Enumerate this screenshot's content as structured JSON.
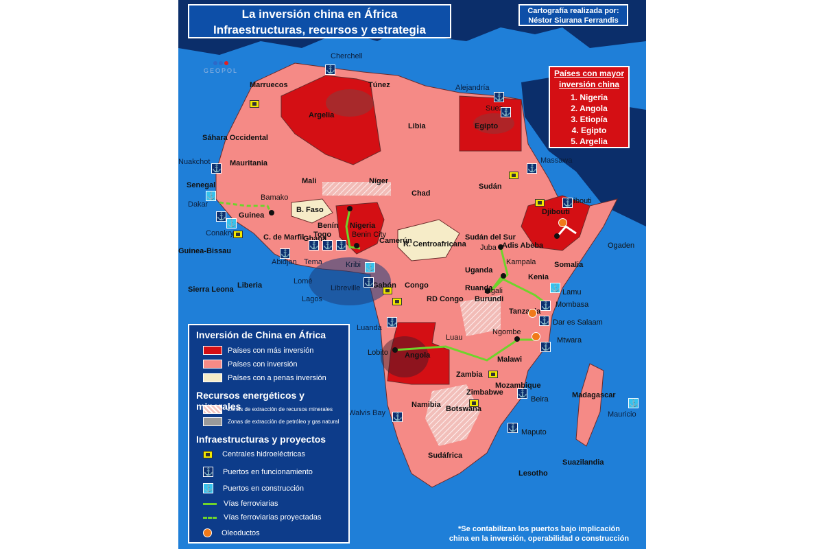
{
  "title": {
    "line1": "La inversión china en África",
    "line2": "Infraestructuras, recursos y estrategia"
  },
  "credit": {
    "line1": "Cartografía realizada por:",
    "line2": "Néstor Siurana Ferrandis"
  },
  "logo": "GEOPOL",
  "top_countries": {
    "heading1": "Países con mayor",
    "heading2": "inversión china",
    "items": [
      "1. Nigeria",
      "2. Angola",
      "3. Etiopía",
      "4. Egipto",
      "5. Argelia"
    ]
  },
  "countries": {
    "marruecos": "Marruecos",
    "argelia": "Argelia",
    "tunez": "Túnez",
    "libia": "Libia",
    "egipto": "Egipto",
    "sahara": "Sáhara Occidental",
    "mauritania": "Mauritania",
    "mali": "Mali",
    "niger": "Níger",
    "chad": "Chad",
    "sudan": "Sudán",
    "senegal": "Senegal",
    "guinea": "Guinea",
    "guinea_bissau": "Guinea-Bissau",
    "sierra_leona": "Sierra Leona",
    "liberia": "Liberia",
    "costa_marfil": "C. de Marfil",
    "ghana": "Ghana",
    "togo": "Togo",
    "benin": "Benín",
    "burkina": "B. Faso",
    "nigeria": "Nigeria",
    "camerun": "Camerún",
    "rca": "R. Centroafricana",
    "sudan_sur": "Sudán del Sur",
    "etiopia": "Adis Abeba",
    "somalia": "Somalia",
    "djibouti": "Djibouti",
    "uganda": "Uganda",
    "kenia": "Kenia",
    "ruanda": "Ruanda",
    "burundi": "Burundi",
    "rdcongo": "RD Congo",
    "congo": "Congo",
    "gabon": "Gabón",
    "tanzania": "Tanzania",
    "angola": "Angola",
    "zambia": "Zambia",
    "malawi": "Malawi",
    "mozambique": "Mozambique",
    "zimbabwe": "Zimbabwe",
    "namibia": "Namibia",
    "botswana": "Botswana",
    "sudafrica": "Sudáfrica",
    "madagascar": "Madagascar",
    "suazilandia": "Suazilandia",
    "lesotho": "Lesotho",
    "ogaden": "Ogaden"
  },
  "places": {
    "cherchell": "Cherchell",
    "alejandria": "Alejandría",
    "suez": "Suez",
    "massawa": "Massawa",
    "nuakchot": "Nuakchot",
    "dakar": "Dakar",
    "bamako": "Bamako",
    "conakry": "Conakry",
    "abidjan": "Abidjan",
    "tema": "Tema",
    "lome": "Lomé",
    "lagos": "Lagos",
    "kribi": "Kribi",
    "benin_city": "Benin City",
    "libreville": "Libreville",
    "juba": "Juba",
    "kampala": "Kampala",
    "kigali": "Kigali",
    "lamu": "Lamu",
    "mombasa": "Mombasa",
    "dar": "Dar es Salaam",
    "mtwara": "Mtwara",
    "luanda": "Luanda",
    "lobito": "Lobito",
    "luau": "Luau",
    "ngombe": "Ngombe",
    "beira": "Beira",
    "walvis": "Walvis Bay",
    "maputo": "Maputo",
    "mauricio": "Mauricio",
    "djibouti_port": "Djibouti"
  },
  "legend": {
    "title": "Inversión de China en África",
    "inv_items": [
      {
        "label": "Países con más inversión",
        "color": "#d40f14"
      },
      {
        "label": "Países con inversión",
        "color": "#f58a86"
      },
      {
        "label": "Países con a penas inversión",
        "color": "#f6ecc8"
      }
    ],
    "res_title": "Recursos energéticos y minerales",
    "res_items": [
      "Zonas de extracción de recursos minerales",
      "Zonas de extracción de petróleo y gas natural"
    ],
    "inf_title": "Infraestructuras y proyectos",
    "inf_items": [
      "Centrales hidroeléctricas",
      "Puertos en funcionamiento",
      "Puertos en construcción",
      "Vías ferroviarias",
      "Vías ferroviarias proyectadas",
      "Oleoductos"
    ]
  },
  "footnote": {
    "line1": "*Se contabilizan los puertos bajo implicación",
    "line2": "china en la inversión, operabilidad o construcción"
  },
  "colors": {
    "ocean": "#1f7fd8",
    "high": "#d40f14",
    "mid": "#f58a86",
    "low": "#f6ecc8",
    "rail": "#6fd42b"
  }
}
